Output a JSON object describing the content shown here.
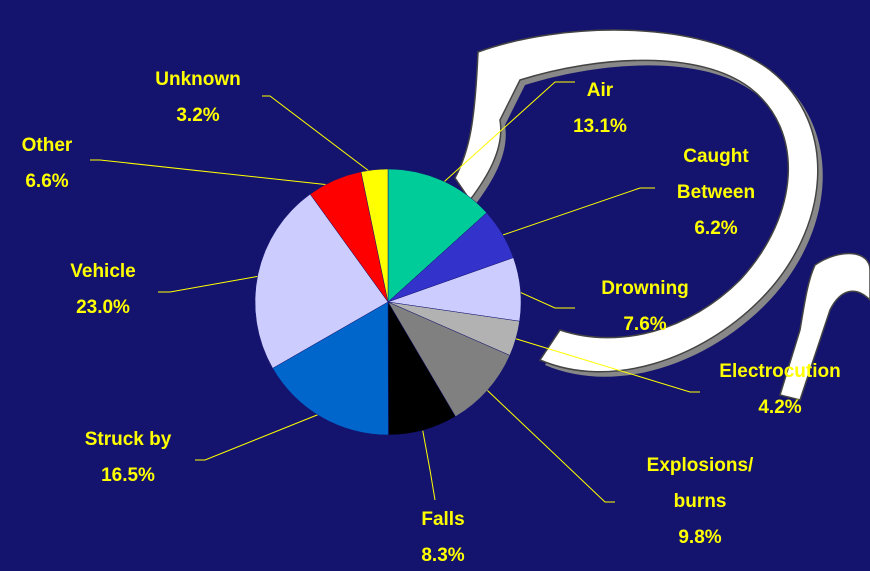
{
  "chart_data": {
    "type": "pie",
    "categories": [
      "Air",
      "Caught\nBetween",
      "Drowning",
      "Electrocution",
      "Explosions/\nburns",
      "Falls",
      "Struck by",
      "Vehicle",
      "Other",
      "Unknown"
    ],
    "values": [
      13.1,
      6.2,
      7.6,
      4.2,
      9.8,
      8.3,
      16.5,
      23.0,
      6.6,
      3.2
    ],
    "value_labels": [
      "13.1%",
      "6.2%",
      "7.6%",
      "4.2%",
      "9.8%",
      "8.3%",
      "16.5%",
      "23.0%",
      "6.6%",
      "3.2%"
    ],
    "colors": [
      "#00cc99",
      "#3333cc",
      "#ccccff",
      "#b2b2b2",
      "#808080",
      "#000000",
      "#0066cc",
      "#ccccff",
      "#ff0000",
      "#ffff00"
    ]
  }
}
